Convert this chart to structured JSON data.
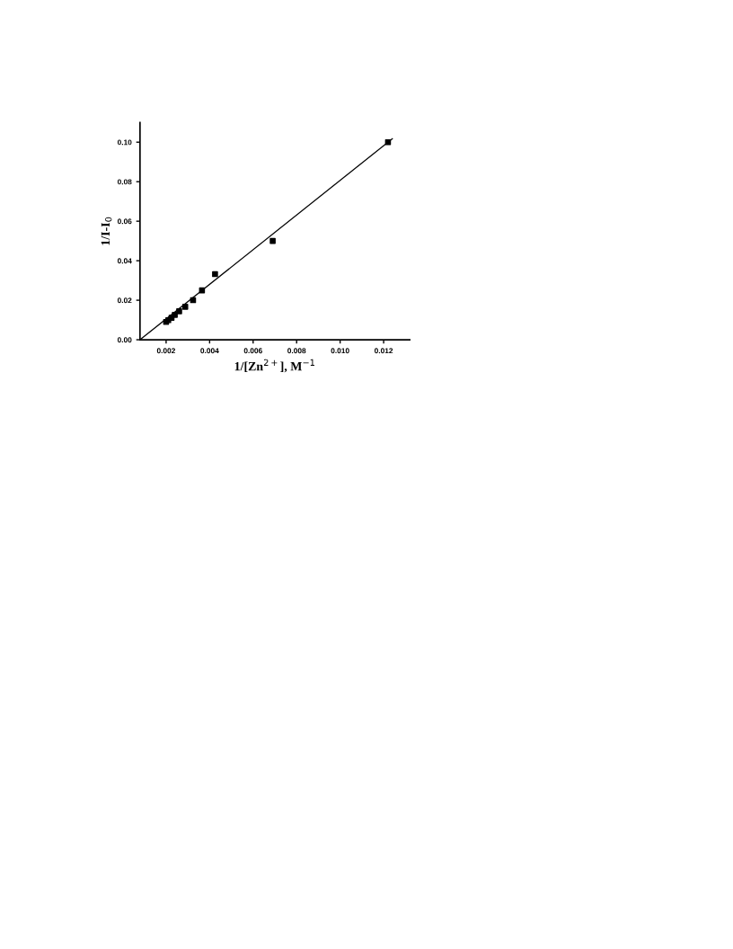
{
  "chart_data": {
    "type": "scatter",
    "xlabel": "1/[Zn$^{2+}$], M$^{−1}$",
    "ylabel": "1/I-I$_{0}$",
    "xlim": [
      0.0008,
      0.0132
    ],
    "ylim": [
      0,
      0.11
    ],
    "xticks": [
      {
        "value": 0.002,
        "label": "0.002"
      },
      {
        "value": 0.004,
        "label": "0.004"
      },
      {
        "value": 0.006,
        "label": "0.006"
      },
      {
        "value": 0.008,
        "label": "0.008"
      },
      {
        "value": 0.01,
        "label": "0.010"
      },
      {
        "value": 0.012,
        "label": "0.012"
      }
    ],
    "yticks": [
      {
        "value": 0,
        "label": "0.00"
      },
      {
        "value": 0.02,
        "label": "0.02"
      },
      {
        "value": 0.04,
        "label": "0.04"
      },
      {
        "value": 0.06,
        "label": "0.06"
      },
      {
        "value": 0.08,
        "label": "0.08"
      },
      {
        "value": 0.1,
        "label": "0.10"
      }
    ],
    "grid": false,
    "series": [
      {
        "marker": "square",
        "color": "#000000",
        "x": [
          0.002,
          0.0021,
          0.00225,
          0.0024,
          0.0026,
          0.00288,
          0.00324,
          0.00365,
          0.00425,
          0.0069,
          0.0122
        ],
        "values": [
          0.009,
          0.0099,
          0.0111,
          0.0126,
          0.0144,
          0.0167,
          0.02,
          0.025,
          0.0332,
          0.05,
          0.1
        ]
      },
      {
        "type": "line",
        "marker": "none",
        "line_style": "solid",
        "color": "#000000",
        "x": [
          0.0008,
          0.0124
        ],
        "values": [
          0,
          0.1017
        ]
      }
    ]
  }
}
